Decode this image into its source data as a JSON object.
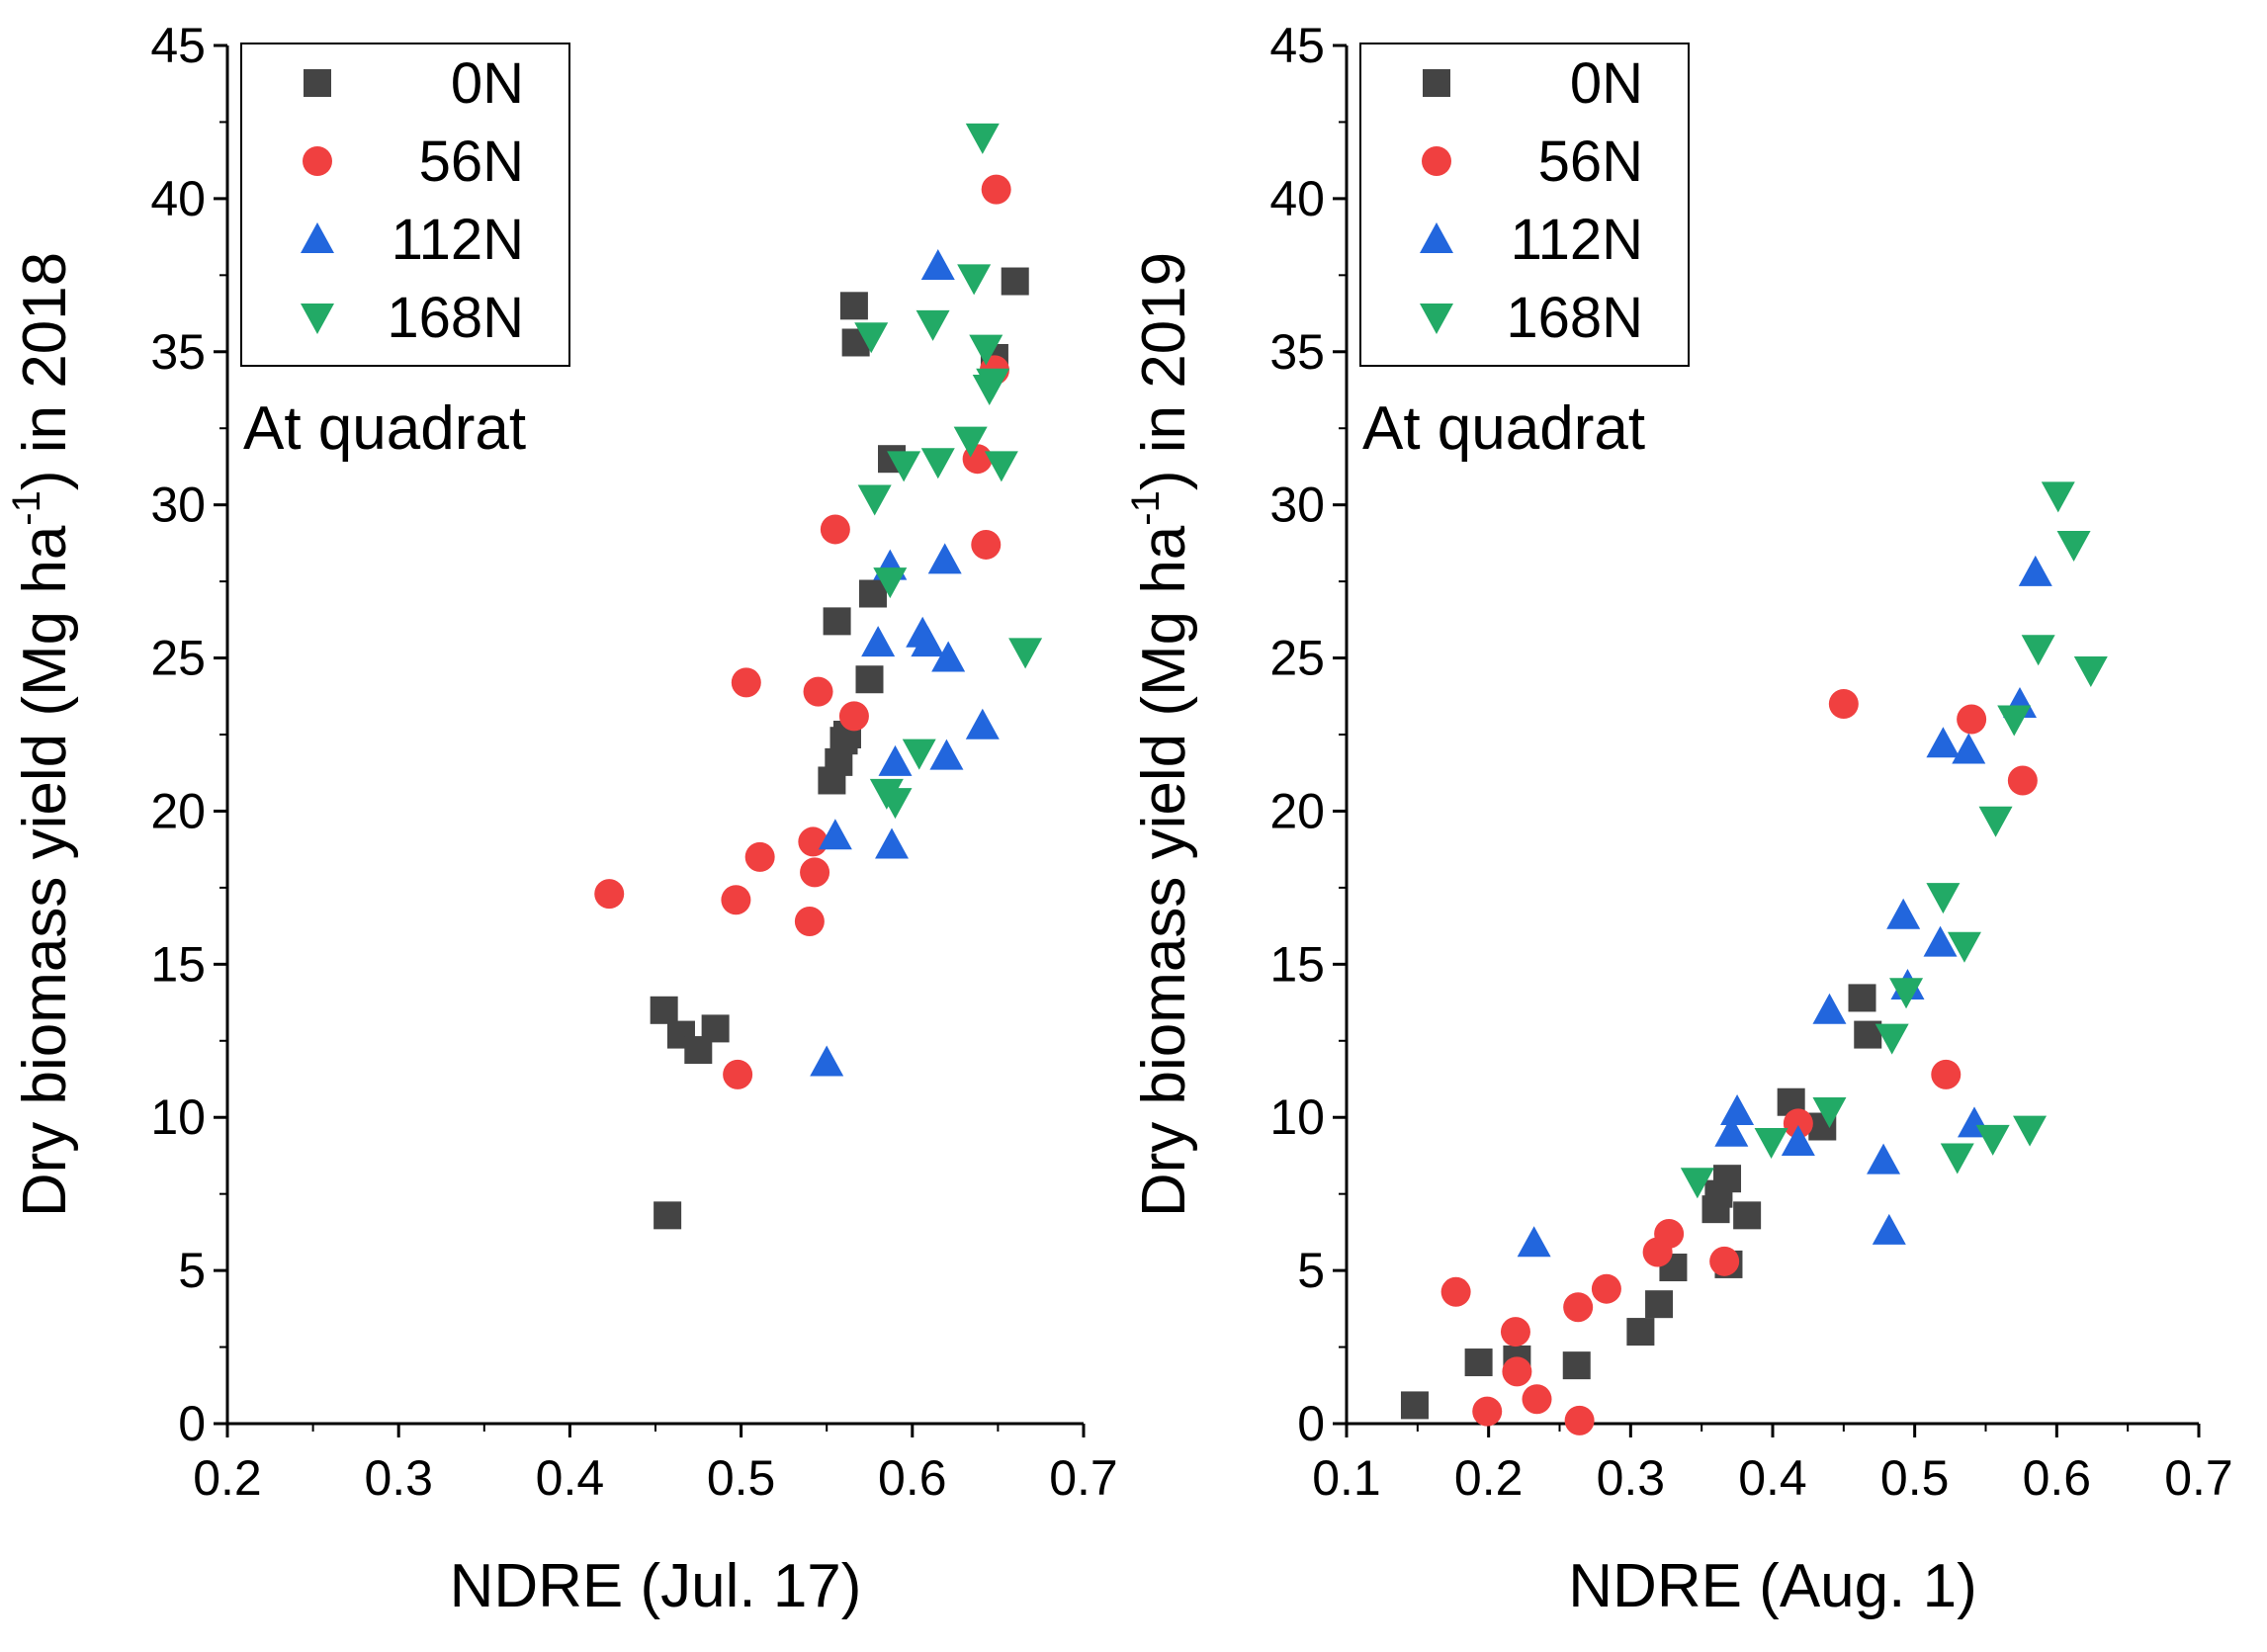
{
  "chart_data": [
    {
      "type": "scatter",
      "panel_label": "At quadrat",
      "xlabel": "NDRE (Jul. 17)",
      "ylabel_main": "Dry biomass yield (Mg ha",
      "ylabel_sup": "-1",
      "ylabel_tail": ") in 2018",
      "xlim": [
        0.2,
        0.7
      ],
      "ylim": [
        0,
        45
      ],
      "xticks": [
        0.2,
        0.3,
        0.4,
        0.5,
        0.6,
        0.7
      ],
      "xtick_labels": [
        "0.2",
        "0.3",
        "0.4",
        "0.5",
        "0.6",
        "0.7"
      ],
      "yticks": [
        0,
        5,
        10,
        15,
        20,
        25,
        30,
        35,
        40,
        45
      ],
      "ytick_labels": [
        "0",
        "5",
        "10",
        "15",
        "20",
        "25",
        "30",
        "35",
        "40",
        "45"
      ],
      "legend_position": "top-left",
      "series": [
        {
          "name": "0N",
          "marker": "square",
          "color": "#444444",
          "x": [
            0.455,
            0.465,
            0.475,
            0.485,
            0.457,
            0.553,
            0.557,
            0.56,
            0.562,
            0.556,
            0.575,
            0.577,
            0.588,
            0.566,
            0.567,
            0.648,
            0.66
          ],
          "y": [
            13.5,
            12.7,
            12.2,
            12.9,
            6.8,
            21.0,
            21.6,
            22.3,
            22.5,
            26.2,
            24.3,
            27.1,
            31.5,
            36.5,
            35.3,
            34.8,
            37.3
          ]
        },
        {
          "name": "56N",
          "marker": "circle",
          "color": "#f04040",
          "x": [
            0.423,
            0.497,
            0.498,
            0.503,
            0.511,
            0.54,
            0.542,
            0.543,
            0.545,
            0.555,
            0.566,
            0.638,
            0.643,
            0.648,
            0.649
          ],
          "y": [
            17.3,
            17.1,
            11.4,
            24.2,
            18.5,
            16.4,
            19.0,
            18.0,
            23.9,
            29.2,
            23.1,
            31.5,
            28.7,
            34.4,
            40.3
          ]
        },
        {
          "name": "112N",
          "marker": "triangle-up",
          "color": "#2266dd",
          "x": [
            0.55,
            0.555,
            0.58,
            0.587,
            0.588,
            0.59,
            0.606,
            0.609,
            0.615,
            0.619,
            0.62,
            0.621,
            0.641
          ],
          "y": [
            11.8,
            19.2,
            25.5,
            28.0,
            18.9,
            21.6,
            25.8,
            25.5,
            37.8,
            28.2,
            21.8,
            25.0,
            22.8
          ]
        },
        {
          "name": "168N",
          "marker": "triangle-down",
          "color": "#22aa66",
          "x": [
            0.576,
            0.578,
            0.585,
            0.587,
            0.59,
            0.595,
            0.604,
            0.612,
            0.615,
            0.634,
            0.636,
            0.641,
            0.643,
            0.645,
            0.647,
            0.652,
            0.666
          ],
          "y": [
            35.5,
            30.2,
            20.6,
            27.5,
            20.3,
            31.3,
            21.9,
            35.9,
            31.4,
            32.1,
            37.4,
            42.0,
            35.1,
            33.8,
            34.0,
            31.3,
            25.2
          ]
        }
      ]
    },
    {
      "type": "scatter",
      "panel_label": "At quadrat",
      "xlabel": "NDRE (Aug. 1)",
      "ylabel_main": "Dry biomass yield (Mg ha",
      "ylabel_sup": "-1",
      "ylabel_tail": ") in 2019",
      "xlim": [
        0.1,
        0.7
      ],
      "ylim": [
        0,
        45
      ],
      "xticks": [
        0.1,
        0.2,
        0.3,
        0.4,
        0.5,
        0.6,
        0.7
      ],
      "xtick_labels": [
        "0.1",
        "0.2",
        "0.3",
        "0.4",
        "0.5",
        "0.6",
        "0.7"
      ],
      "yticks": [
        0,
        5,
        10,
        15,
        20,
        25,
        30,
        35,
        40,
        45
      ],
      "ytick_labels": [
        "0",
        "5",
        "10",
        "15",
        "20",
        "25",
        "30",
        "35",
        "40",
        "45"
      ],
      "legend_position": "top-left",
      "series": [
        {
          "name": "0N",
          "marker": "square",
          "color": "#444444",
          "x": [
            0.148,
            0.193,
            0.22,
            0.262,
            0.307,
            0.32,
            0.33,
            0.36,
            0.362,
            0.368,
            0.369,
            0.382,
            0.413,
            0.435,
            0.463,
            0.467
          ],
          "y": [
            0.6,
            2.0,
            2.1,
            1.9,
            3.0,
            3.9,
            5.1,
            7.0,
            7.5,
            8.0,
            5.2,
            6.8,
            10.5,
            9.7,
            13.9,
            12.7
          ]
        },
        {
          "name": "56N",
          "marker": "circle",
          "color": "#f04040",
          "x": [
            0.177,
            0.199,
            0.219,
            0.22,
            0.234,
            0.263,
            0.264,
            0.283,
            0.319,
            0.327,
            0.366,
            0.418,
            0.45,
            0.522,
            0.54,
            0.576
          ],
          "y": [
            4.3,
            0.4,
            3.0,
            1.7,
            0.8,
            3.8,
            0.1,
            4.4,
            5.6,
            6.2,
            5.3,
            9.8,
            23.5,
            11.4,
            23.0,
            21.0
          ]
        },
        {
          "name": "112N",
          "marker": "triangle-up",
          "color": "#2266dd",
          "x": [
            0.232,
            0.371,
            0.375,
            0.418,
            0.44,
            0.478,
            0.482,
            0.492,
            0.495,
            0.518,
            0.52,
            0.538,
            0.542,
            0.574,
            0.585
          ],
          "y": [
            5.9,
            9.5,
            10.2,
            9.2,
            13.5,
            8.6,
            6.3,
            16.6,
            14.3,
            15.7,
            22.2,
            22.0,
            9.8,
            23.5,
            27.8
          ]
        },
        {
          "name": "168N",
          "marker": "triangle-down",
          "color": "#22aa66",
          "x": [
            0.347,
            0.399,
            0.44,
            0.484,
            0.494,
            0.52,
            0.53,
            0.535,
            0.555,
            0.557,
            0.57,
            0.581,
            0.587,
            0.601,
            0.612,
            0.624
          ],
          "y": [
            7.9,
            9.2,
            10.2,
            12.6,
            14.1,
            17.2,
            8.7,
            15.6,
            9.3,
            19.7,
            23.0,
            9.6,
            25.3,
            30.3,
            28.7,
            24.6
          ]
        }
      ]
    }
  ]
}
